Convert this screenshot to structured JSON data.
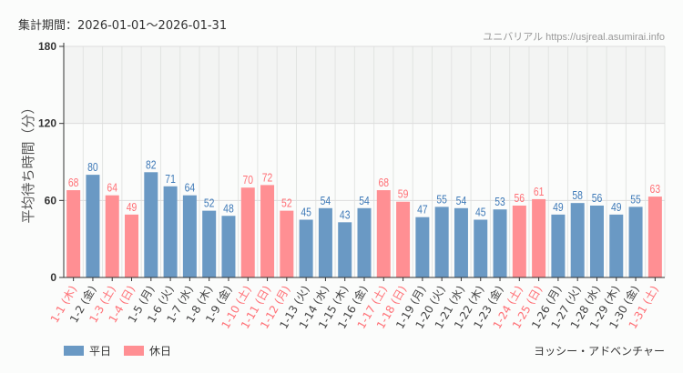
{
  "header": {
    "period": "集計期間：2026-01-01～2026-01-31",
    "site": "ユニバリアル  https://usjreal.asumirai.info"
  },
  "footer": {
    "attraction": "ヨッシー・アドベンチャー"
  },
  "colors": {
    "weekday": "#6a99c4",
    "holiday": "#ff8f93",
    "weekday_text": "#3f7ab8",
    "holiday_text": "#ff6f75",
    "band": "#f3f4f3"
  },
  "chart_data": {
    "type": "bar",
    "ylabel": "平均待ち時間（分）",
    "ylim": [
      0,
      180
    ],
    "yticks": [
      0,
      60,
      120,
      180
    ],
    "grid": true,
    "legend_position": "bottom-left",
    "legend": [
      {
        "name": "平日",
        "key": "weekday"
      },
      {
        "name": "休日",
        "key": "holiday"
      }
    ],
    "categories": [
      "1-1 (木)",
      "1-2 (金)",
      "1-3 (土)",
      "1-4 (日)",
      "1-5 (月)",
      "1-6 (火)",
      "1-7 (水)",
      "1-8 (木)",
      "1-9 (金)",
      "1-10 (土)",
      "1-11 (日)",
      "1-12 (月)",
      "1-13 (火)",
      "1-14 (水)",
      "1-15 (木)",
      "1-16 (金)",
      "1-17 (土)",
      "1-18 (日)",
      "1-19 (月)",
      "1-20 (火)",
      "1-21 (水)",
      "1-22 (木)",
      "1-23 (金)",
      "1-24 (土)",
      "1-25 (日)",
      "1-26 (月)",
      "1-27 (火)",
      "1-28 (水)",
      "1-29 (木)",
      "1-30 (金)",
      "1-31 (土)"
    ],
    "values": [
      68,
      80,
      64,
      49,
      82,
      71,
      64,
      52,
      48,
      70,
      72,
      52,
      45,
      54,
      43,
      54,
      68,
      59,
      47,
      55,
      54,
      45,
      53,
      56,
      61,
      49,
      58,
      56,
      49,
      55,
      63
    ],
    "holiday": [
      true,
      false,
      true,
      true,
      false,
      false,
      false,
      false,
      false,
      true,
      true,
      true,
      false,
      false,
      false,
      false,
      true,
      true,
      false,
      false,
      false,
      false,
      false,
      true,
      true,
      false,
      false,
      false,
      false,
      false,
      true
    ]
  }
}
